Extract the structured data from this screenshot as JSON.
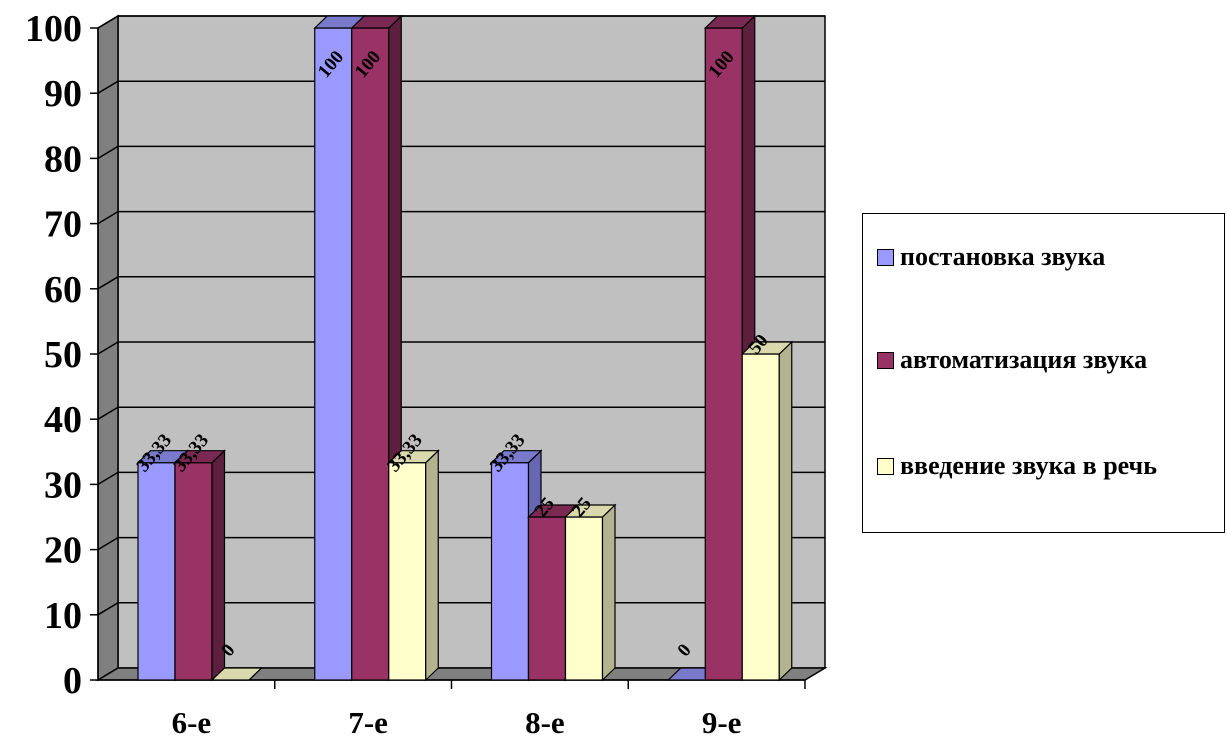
{
  "chart_data": {
    "type": "bar",
    "categories": [
      "6-е",
      "7-е",
      "8-е",
      "9-е"
    ],
    "series": [
      {
        "name": "постановка звука",
        "values": [
          33.33,
          100,
          33.33,
          0
        ],
        "labels": [
          "33,33",
          "100",
          "33,33",
          "0"
        ],
        "color": "#9999FF",
        "side_color": "#6666b3",
        "top_color": "#7a7acc"
      },
      {
        "name": "автоматизация звука",
        "values": [
          33.33,
          100,
          25,
          100
        ],
        "labels": [
          "33,33",
          "100",
          "25",
          "100"
        ],
        "color": "#993366",
        "side_color": "#5c1f3d",
        "top_color": "#7a2952"
      },
      {
        "name": "введение звука в речь",
        "values": [
          0,
          33.33,
          25,
          50
        ],
        "labels": [
          "0",
          "33,33",
          "25",
          "50"
        ],
        "color": "#FFFFCC",
        "side_color": "#b3b38f",
        "top_color": "#d9d9ad"
      }
    ],
    "ylim": [
      0,
      100
    ],
    "yticks": [
      0,
      10,
      20,
      30,
      40,
      50,
      60,
      70,
      80,
      90,
      100
    ],
    "grid": true,
    "wall_color": "#C0C0C0",
    "legend_position": "right"
  }
}
